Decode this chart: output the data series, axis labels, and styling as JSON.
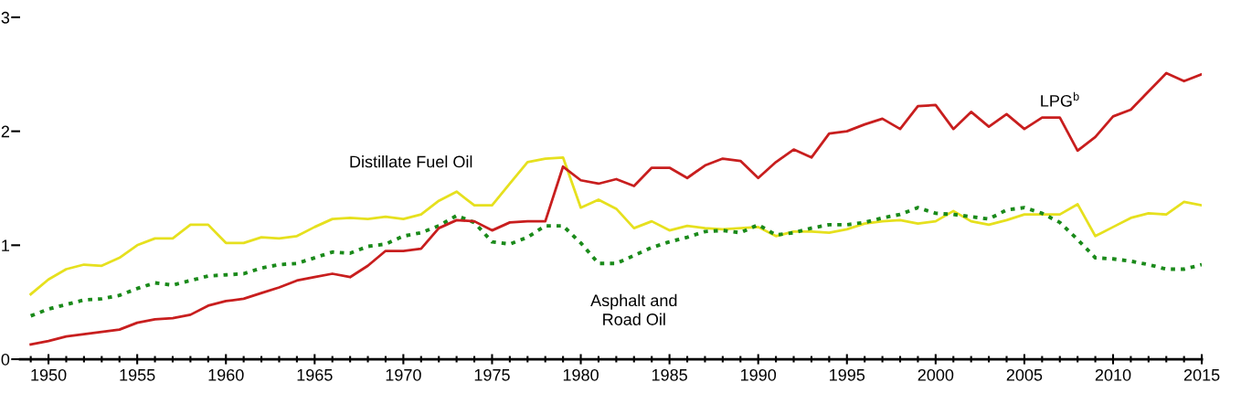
{
  "chart_data": {
    "type": "line",
    "x": [
      1949,
      1950,
      1951,
      1952,
      1953,
      1954,
      1955,
      1956,
      1957,
      1958,
      1959,
      1960,
      1961,
      1962,
      1963,
      1964,
      1965,
      1966,
      1967,
      1968,
      1969,
      1970,
      1971,
      1972,
      1973,
      1974,
      1975,
      1976,
      1977,
      1978,
      1979,
      1980,
      1981,
      1982,
      1983,
      1984,
      1985,
      1986,
      1987,
      1988,
      1989,
      1990,
      1991,
      1992,
      1993,
      1994,
      1995,
      1996,
      1997,
      1998,
      1999,
      2000,
      2001,
      2002,
      2003,
      2004,
      2005,
      2006,
      2007,
      2008,
      2009,
      2010,
      2011,
      2012,
      2013,
      2014,
      2015
    ],
    "series": [
      {
        "name": "Distillate Fuel Oil",
        "color": "#e6e01e",
        "line_style": "solid",
        "values": [
          0.57,
          0.7,
          0.79,
          0.83,
          0.82,
          0.89,
          1.0,
          1.06,
          1.06,
          1.18,
          1.18,
          1.02,
          1.02,
          1.07,
          1.06,
          1.08,
          1.16,
          1.23,
          1.24,
          1.23,
          1.25,
          1.23,
          1.27,
          1.39,
          1.47,
          1.35,
          1.35,
          1.54,
          1.73,
          1.76,
          1.77,
          1.33,
          1.4,
          1.32,
          1.15,
          1.21,
          1.13,
          1.17,
          1.15,
          1.14,
          1.15,
          1.16,
          1.08,
          1.12,
          1.12,
          1.11,
          1.14,
          1.19,
          1.21,
          1.22,
          1.19,
          1.21,
          1.3,
          1.21,
          1.18,
          1.22,
          1.27,
          1.27,
          1.27,
          1.36,
          1.08,
          1.16,
          1.24,
          1.28,
          1.27,
          1.38,
          1.35
        ]
      },
      {
        "name": "Asphalt and\nRoad Oil",
        "color": "#1a8a1a",
        "line_style": "dotted",
        "values": [
          0.38,
          0.44,
          0.48,
          0.52,
          0.53,
          0.56,
          0.62,
          0.67,
          0.65,
          0.69,
          0.73,
          0.74,
          0.75,
          0.8,
          0.83,
          0.84,
          0.89,
          0.94,
          0.93,
          0.99,
          1.01,
          1.08,
          1.11,
          1.17,
          1.26,
          1.2,
          1.03,
          1.01,
          1.07,
          1.17,
          1.17,
          1.02,
          0.84,
          0.84,
          0.91,
          0.98,
          1.03,
          1.07,
          1.12,
          1.13,
          1.11,
          1.18,
          1.09,
          1.11,
          1.15,
          1.18,
          1.18,
          1.2,
          1.24,
          1.27,
          1.33,
          1.28,
          1.27,
          1.25,
          1.23,
          1.31,
          1.33,
          1.28,
          1.2,
          1.05,
          0.89,
          0.88,
          0.86,
          0.83,
          0.79,
          0.79,
          0.83
        ]
      },
      {
        "name": "LPG$^{b}$",
        "color": "#c81e1e",
        "line_style": "solid",
        "values": [
          0.13,
          0.16,
          0.2,
          0.22,
          0.24,
          0.26,
          0.32,
          0.35,
          0.36,
          0.39,
          0.47,
          0.51,
          0.53,
          0.58,
          0.63,
          0.69,
          0.72,
          0.75,
          0.72,
          0.82,
          0.95,
          0.95,
          0.97,
          1.15,
          1.22,
          1.21,
          1.13,
          1.2,
          1.21,
          1.21,
          1.69,
          1.57,
          1.54,
          1.58,
          1.52,
          1.68,
          1.68,
          1.59,
          1.7,
          1.76,
          1.74,
          1.59,
          1.73,
          1.84,
          1.77,
          1.98,
          2.0,
          2.06,
          2.11,
          2.02,
          2.22,
          2.23,
          2.02,
          2.17,
          2.04,
          2.15,
          2.02,
          2.12,
          2.12,
          1.83,
          1.95,
          2.13,
          2.19,
          2.35,
          2.51,
          2.44,
          2.5
        ]
      }
    ],
    "xlim": [
      1948.4,
      2015
    ],
    "xticks": [
      1950,
      1955,
      1960,
      1965,
      1970,
      1975,
      1980,
      1985,
      1990,
      1995,
      2000,
      2005,
      2010,
      2015
    ],
    "ylim": [
      0,
      3
    ],
    "yticks": [
      0,
      1,
      2,
      3
    ],
    "grid": false,
    "legend": false,
    "marker": "none"
  }
}
